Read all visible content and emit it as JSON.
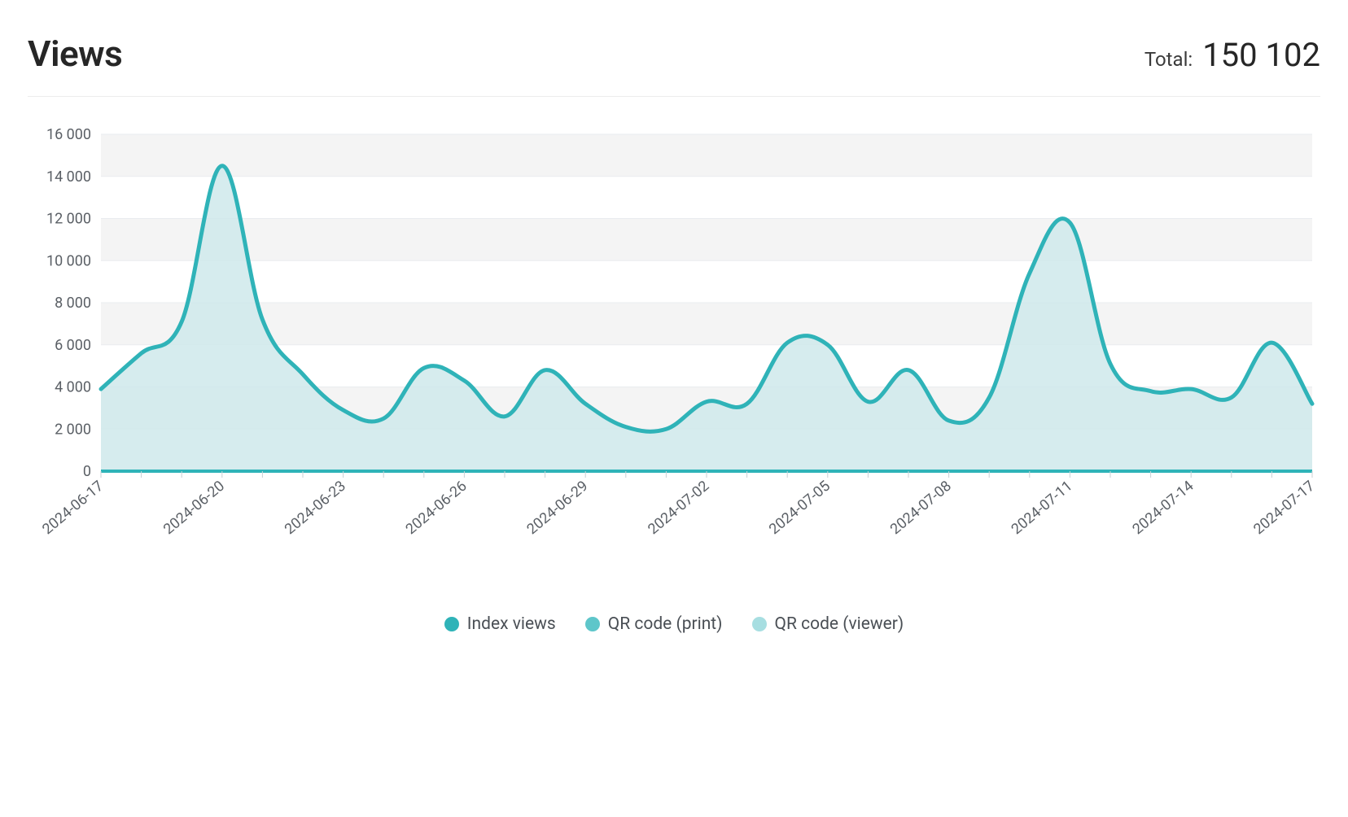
{
  "header": {
    "title": "Views",
    "total_label": "Total:",
    "total_value": "150 102"
  },
  "chart": {
    "type": "area",
    "background_color": "#ffffff",
    "grid_band_color": "#f4f4f4",
    "axis_line_color": "#c9d1d6",
    "tick_color": "#5a5f65",
    "label_fontsize": 18,
    "ylim": [
      0,
      16000
    ],
    "ytick_step": 2000,
    "ytick_labels": [
      "0",
      "2 000",
      "4 000",
      "6 000",
      "8 000",
      "10 000",
      "12 000",
      "14 000",
      "16 000"
    ],
    "x_dates": [
      "2024-06-17",
      "2024-06-18",
      "2024-06-19",
      "2024-06-20",
      "2024-06-21",
      "2024-06-22",
      "2024-06-23",
      "2024-06-24",
      "2024-06-25",
      "2024-06-26",
      "2024-06-27",
      "2024-06-28",
      "2024-06-29",
      "2024-06-30",
      "2024-07-01",
      "2024-07-02",
      "2024-07-03",
      "2024-07-04",
      "2024-07-05",
      "2024-07-06",
      "2024-07-07",
      "2024-07-08",
      "2024-07-09",
      "2024-07-10",
      "2024-07-11",
      "2024-07-12",
      "2024-07-13",
      "2024-07-14",
      "2024-07-15",
      "2024-07-16",
      "2024-07-17"
    ],
    "x_tick_dates": [
      "2024-06-17",
      "2024-06-20",
      "2024-06-23",
      "2024-06-26",
      "2024-06-29",
      "2024-07-02",
      "2024-07-05",
      "2024-07-08",
      "2024-07-11",
      "2024-07-14",
      "2024-07-17"
    ],
    "series": [
      {
        "name": "Index views",
        "stroke": "#2fb3b8",
        "stroke_width": 5,
        "fill": "#cfe9eb",
        "fill_opacity": 0.85,
        "values": [
          3900,
          5600,
          7100,
          14500,
          7200,
          4600,
          2900,
          2500,
          4900,
          4300,
          2600,
          4800,
          3200,
          2100,
          2000,
          3300,
          3200,
          6100,
          6000,
          3300,
          4800,
          2400,
          3500,
          9400,
          11800,
          5100,
          3800,
          3900,
          3500,
          6100,
          3200
        ]
      },
      {
        "name": "QR code (print)",
        "stroke": "#5ec6ca",
        "stroke_width": 5,
        "fill": "none",
        "values": null
      },
      {
        "name": "QR code (viewer)",
        "stroke": "#a7dee1",
        "stroke_width": 5,
        "fill": "none",
        "values": null
      }
    ]
  },
  "legend": {
    "items": [
      {
        "label": "Index views",
        "color": "#2fb3b8"
      },
      {
        "label": "QR code (print)",
        "color": "#5ec6ca"
      },
      {
        "label": "QR code (viewer)",
        "color": "#a7dee1"
      }
    ]
  },
  "toolbar": {
    "icons": [
      "zoom-in",
      "zoom-out",
      "zoom-select",
      "pan",
      "home",
      "menu"
    ],
    "active": "zoom-select",
    "icon_color": "#6e7880",
    "active_color": "#00a3e0"
  }
}
